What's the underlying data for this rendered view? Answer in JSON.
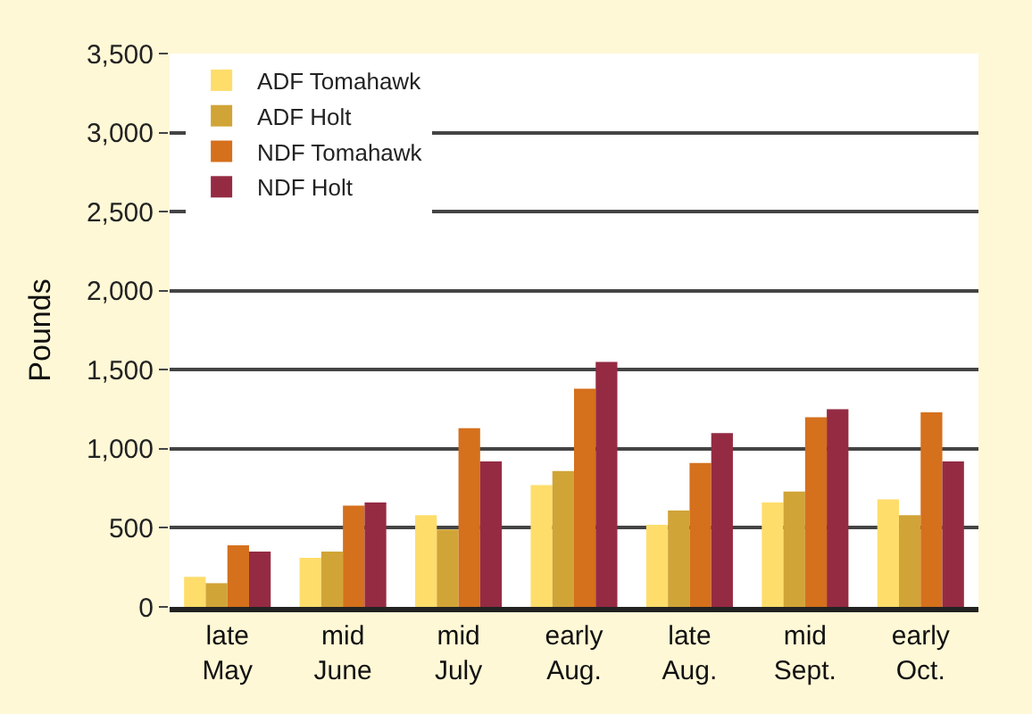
{
  "chart_data": {
    "type": "bar",
    "ylabel": "Pounds",
    "categories": [
      "late\nMay",
      "mid\nJune",
      "mid\nJuly",
      "early\nAug.",
      "late\nAug.",
      "mid\nSept.",
      "early\nOct."
    ],
    "series": [
      {
        "name": "ADF Tomahawk",
        "color": "#fedd6b",
        "values": [
          190,
          310,
          580,
          770,
          520,
          660,
          680
        ]
      },
      {
        "name": "ADF Holt",
        "color": "#d1a437",
        "values": [
          150,
          350,
          490,
          860,
          610,
          730,
          580
        ]
      },
      {
        "name": "NDF Tomahawk",
        "color": "#d5701d",
        "values": [
          390,
          640,
          1130,
          1380,
          910,
          1200,
          1230
        ]
      },
      {
        "name": "NDF Holt",
        "color": "#952b43",
        "values": [
          350,
          660,
          920,
          1550,
          1100,
          1250,
          920
        ]
      }
    ],
    "ylim": [
      0,
      3500
    ],
    "yticks": [
      0,
      {
        "value": 500,
        "label": "500"
      },
      {
        "value": 1000,
        "label": "1,000"
      },
      {
        "value": 1500,
        "label": "1,500"
      },
      {
        "value": 2000,
        "label": "2,000"
      },
      {
        "value": 2500,
        "label": "2,500"
      },
      {
        "value": 3000,
        "label": "3,000"
      },
      {
        "value": 3500,
        "label": "3,500"
      }
    ],
    "grid": "y",
    "legend": "top left"
  }
}
